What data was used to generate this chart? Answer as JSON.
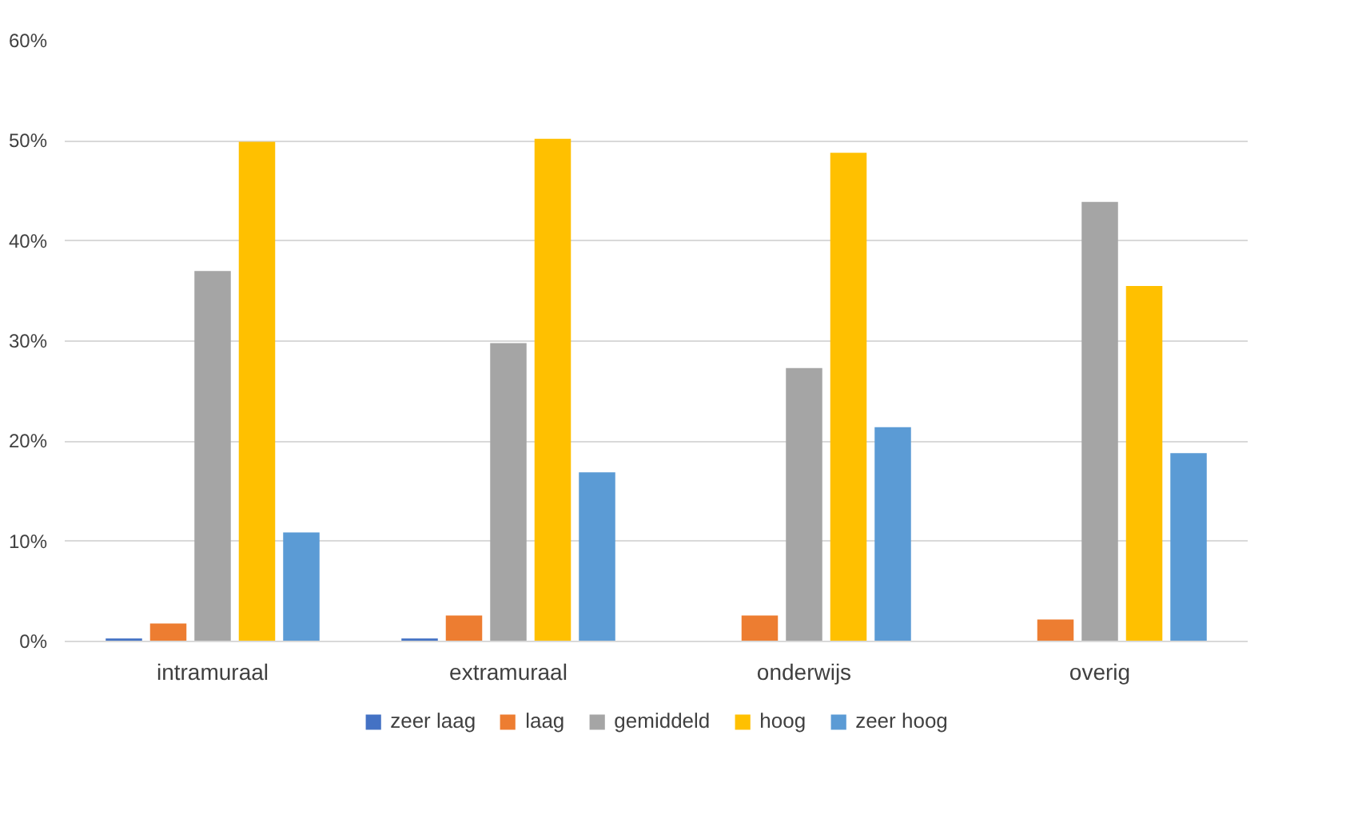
{
  "chart_data": {
    "type": "bar",
    "categories": [
      "intramuraal",
      "extramuraal",
      "onderwijs",
      "overig"
    ],
    "series": [
      {
        "name": "zeer laag",
        "color": "#4472c4",
        "values": [
          0.3,
          0.3,
          0,
          0
        ]
      },
      {
        "name": "laag",
        "color": "#ed7d31",
        "values": [
          1.8,
          2.6,
          2.6,
          2.2
        ]
      },
      {
        "name": "gemiddeld",
        "color": "#a5a5a5",
        "values": [
          37.0,
          29.8,
          27.3,
          43.9
        ]
      },
      {
        "name": "hoog",
        "color": "#ffc000",
        "values": [
          49.9,
          50.2,
          48.8,
          35.5
        ]
      },
      {
        "name": "zeer hoog",
        "color": "#5b9bd5",
        "values": [
          10.9,
          16.9,
          21.4,
          18.8
        ]
      }
    ],
    "ylim": [
      0,
      60
    ],
    "yticks": [
      {
        "value": 0,
        "label": "0%"
      },
      {
        "value": 10,
        "label": "10%"
      },
      {
        "value": 20,
        "label": "20%"
      },
      {
        "value": 30,
        "label": "30%"
      },
      {
        "value": 40,
        "label": "40%"
      },
      {
        "value": 50,
        "label": "50%"
      },
      {
        "value": 60,
        "label": "60%"
      }
    ],
    "grid": "y",
    "legend": "bottom"
  }
}
